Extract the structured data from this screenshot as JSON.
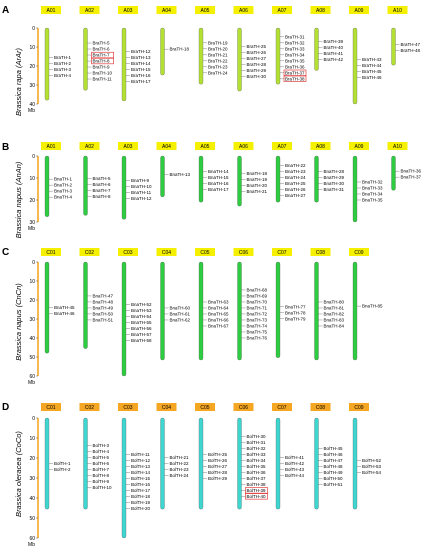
{
  "panels": [
    {
      "letter": "A",
      "species": "Brassica rapa (ArAr)",
      "label_fill": "#f4f000",
      "chrom_fill": "#b4e034",
      "scale_ticks": [
        "0",
        "10",
        "20",
        "30",
        "40"
      ],
      "scale_unit": "Mb",
      "chromosomes": [
        {
          "name": "A01",
          "genes": [
            "BraTH-1",
            "BraTH-2",
            "BraTH-3",
            "BraTH-4"
          ]
        },
        {
          "name": "A02",
          "genes": [
            "BraTH-5",
            "BraTH-6",
            "BraTH-7",
            "BraTH-8",
            "BraTH-9",
            "BraTH-10",
            "BraTH-11"
          ]
        },
        {
          "name": "A03",
          "genes": [
            "BraTH-12",
            "BraTH-13",
            "BraTH-14",
            "BraTH-15",
            "BraTH-16",
            "BraTH-17"
          ]
        },
        {
          "name": "A04",
          "genes": [
            "BraTH-18"
          ]
        },
        {
          "name": "A05",
          "genes": [
            "BraTH-19",
            "BraTH-20",
            "BraTH-21",
            "BraTH-22",
            "BraTH-23",
            "BraTH-24"
          ]
        },
        {
          "name": "A06",
          "genes": [
            "BraTH-25",
            "BraTH-26",
            "BraTH-27",
            "BraTH-28",
            "BraTH-29",
            "BraTH-30"
          ]
        },
        {
          "name": "A07",
          "genes": [
            "BraTH-31",
            "BraTH-32",
            "BraTH-33",
            "BraTH-34",
            "BraTH-35",
            "BraTH-36",
            "BraTH-37",
            "BraTH-38"
          ]
        },
        {
          "name": "A08",
          "genes": [
            "BraTH-39",
            "BraTH-40",
            "BraTH-41",
            "BraTH-42"
          ]
        },
        {
          "name": "A09",
          "genes": [
            "BraTH-43",
            "BraTH-44",
            "BraTH-45",
            "BraTH-46"
          ]
        },
        {
          "name": "A10",
          "genes": [
            "BraTH-47",
            "BraTH-48"
          ]
        }
      ],
      "highlighted": [
        "BraTH-7",
        "BraTH-8",
        "BraTH-37",
        "BraTH-38"
      ]
    },
    {
      "letter": "B",
      "species": "Brassica napus (AnAn)",
      "label_fill": "#f4f000",
      "chrom_fill": "#2ecc40",
      "scale_ticks": [
        "0",
        "10",
        "20",
        "30"
      ],
      "scale_unit": "Mb",
      "chromosomes": [
        {
          "name": "A01",
          "genes": [
            "BnaTH-1",
            "BnaTH-2",
            "BnaTH-3",
            "BnaTH-4"
          ]
        },
        {
          "name": "A02",
          "genes": [
            "BnaTH-5",
            "BnaTH-6",
            "BnaTH-7",
            "BnaTH-8"
          ]
        },
        {
          "name": "A03",
          "genes": [
            "BnaTH-9",
            "BnaTH-10",
            "BnaTH-11",
            "BnaTH-12"
          ]
        },
        {
          "name": "A04",
          "genes": [
            "BnaTH-13"
          ]
        },
        {
          "name": "A05",
          "genes": [
            "BnaTH-14",
            "BnaTH-15",
            "BnaTH-16",
            "BnaTH-17"
          ]
        },
        {
          "name": "A06",
          "genes": [
            "BnaTH-18",
            "BnaTH-19",
            "BnaTH-20",
            "BnaTH-21"
          ]
        },
        {
          "name": "A07",
          "genes": [
            "BnaTH-22",
            "BnaTH-23",
            "BnaTH-24",
            "BnaTH-25",
            "BnaTH-26",
            "BnaTH-27"
          ]
        },
        {
          "name": "A08",
          "genes": [
            "BnaTH-28",
            "BnaTH-29",
            "BnaTH-30",
            "BnaTH-31"
          ]
        },
        {
          "name": "A09",
          "genes": [
            "BnaTH-32",
            "BnaTH-33",
            "BnaTH-34",
            "BnaTH-35"
          ]
        },
        {
          "name": "A10",
          "genes": [
            "BnaTH-36",
            "BnaTH-37"
          ]
        }
      ],
      "highlighted": []
    },
    {
      "letter": "C",
      "species": "Brassica napus (CnCn)",
      "label_fill": "#f4f000",
      "chrom_fill": "#2ecc40",
      "scale_ticks": [
        "0",
        "10",
        "20",
        "30",
        "40",
        "50",
        "60"
      ],
      "scale_unit": "Mb",
      "chromosomes": [
        {
          "name": "C01",
          "genes": [
            "BnaTH-45",
            "BnaTH-46"
          ]
        },
        {
          "name": "C02",
          "genes": [
            "BnaTH-47",
            "BnaTH-48",
            "BnaTH-49",
            "BnaTH-50",
            "BnaTH-51"
          ]
        },
        {
          "name": "C03",
          "genes": [
            "BnaTH-52",
            "BnaTH-53",
            "BnaTH-54",
            "BnaTH-55",
            "BnaTH-56",
            "BnaTH-57",
            "BnaTH-58"
          ]
        },
        {
          "name": "C04",
          "genes": [
            "BnaTH-60",
            "BnaTH-61",
            "BnaTH-62"
          ]
        },
        {
          "name": "C05",
          "genes": [
            "BnaTH-63",
            "BnaTH-64",
            "BnaTH-65",
            "BnaTH-66",
            "BnaTH-67"
          ]
        },
        {
          "name": "C06",
          "genes": [
            "BnaTH-68",
            "BnaTH-69",
            "BnaTH-70",
            "BnaTH-71",
            "BnaTH-72",
            "BnaTH-73",
            "BnaTH-74",
            "BnaTH-75",
            "BnaTH-76"
          ]
        },
        {
          "name": "C07",
          "genes": [
            "BnaTH-77",
            "BnaTH-78",
            "BnaTH-79"
          ]
        },
        {
          "name": "C08",
          "genes": [
            "BnaTH-80",
            "BnaTH-81",
            "BnaTH-82",
            "BnaTH-83",
            "BnaTH-84"
          ]
        },
        {
          "name": "C09",
          "genes": [
            "BnaTH-85"
          ]
        }
      ],
      "highlighted": []
    },
    {
      "letter": "D",
      "species": "Brassica oleracea (CoCo)",
      "label_fill": "#f5a623",
      "chrom_fill": "#3fd6d0",
      "scale_ticks": [
        "0",
        "10",
        "20",
        "30",
        "40",
        "50",
        "60"
      ],
      "scale_unit": "Mb",
      "chromosomes": [
        {
          "name": "C01",
          "genes": [
            "BolTH-1",
            "BolTH-2"
          ]
        },
        {
          "name": "C02",
          "genes": [
            "BolTH-3",
            "BolTH-4",
            "BolTH-5",
            "BolTH-6",
            "BolTH-7",
            "BolTH-8",
            "BolTH-9",
            "BolTH-10"
          ]
        },
        {
          "name": "C03",
          "genes": [
            "BolTH-11",
            "BolTH-12",
            "BolTH-13",
            "BolTH-14",
            "BolTH-15",
            "BolTH-16",
            "BolTH-17",
            "BolTH-18",
            "BolTH-19",
            "BolTH-20"
          ]
        },
        {
          "name": "C04",
          "genes": [
            "BolTH-21",
            "BolTH-22",
            "BolTH-23",
            "BolTH-24"
          ]
        },
        {
          "name": "C05",
          "genes": [
            "BolTH-25",
            "BolTH-26",
            "BolTH-27",
            "BolTH-28",
            "BolTH-29"
          ]
        },
        {
          "name": "C06",
          "genes": [
            "BolTH-30",
            "BolTH-31",
            "BolTH-32",
            "BolTH-33",
            "BolTH-34",
            "BolTH-35",
            "BolTH-36",
            "BolTH-37",
            "BolTH-38",
            "BolTH-39",
            "BolTH-40"
          ]
        },
        {
          "name": "C07",
          "genes": [
            "BolTH-41",
            "BolTH-42",
            "BolTH-43",
            "BolTH-44"
          ]
        },
        {
          "name": "C08",
          "genes": [
            "BolTH-45",
            "BolTH-46",
            "BolTH-47",
            "BolTH-48",
            "BolTH-49",
            "BolTH-50",
            "BolTH-51"
          ]
        },
        {
          "name": "C09",
          "genes": [
            "BolTH-52",
            "BolTH-53",
            "BolTH-54"
          ]
        }
      ],
      "highlighted": [
        "BolTH-39",
        "BolTH-40"
      ]
    }
  ]
}
